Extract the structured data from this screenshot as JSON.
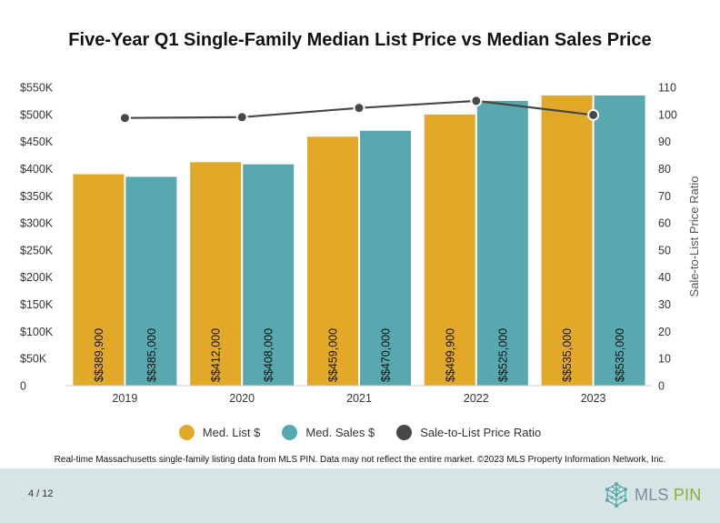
{
  "chart_data": {
    "type": "bar",
    "title": "Five-Year Q1 Single-Family Median List Price vs Median Sales Price",
    "categories": [
      "2019",
      "2020",
      "2021",
      "2022",
      "2023"
    ],
    "series": [
      {
        "name": "Med. List $",
        "type": "bar",
        "axis": "left",
        "color": "#E2A828",
        "values": [
          389900,
          412000,
          459000,
          499900,
          535000
        ],
        "labels": [
          "$$389,900",
          "$$412,000",
          "$$459,000",
          "$$499,900",
          "$$535,000"
        ]
      },
      {
        "name": "Med. Sales $",
        "type": "bar",
        "axis": "left",
        "color": "#58A9AF",
        "values": [
          385000,
          408000,
          470000,
          525000,
          535000
        ],
        "labels": [
          "$$385,000",
          "$$408,000",
          "$$470,000",
          "$$525,000",
          "$$535,000"
        ]
      },
      {
        "name": "Sale-to-List Price Ratio",
        "type": "line",
        "axis": "right",
        "color": "#484848",
        "values": [
          98.7,
          99.0,
          102.4,
          105.0,
          99.8
        ]
      }
    ],
    "y_left": {
      "ylim": [
        0,
        550000
      ],
      "ticks": [
        0,
        50000,
        100000,
        150000,
        200000,
        250000,
        300000,
        350000,
        400000,
        450000,
        500000,
        550000
      ],
      "tick_labels": [
        "0",
        "$50K",
        "$100K",
        "$150K",
        "$200K",
        "$250K",
        "$300K",
        "$350K",
        "$400K",
        "$450K",
        "$500K",
        "$550K"
      ]
    },
    "y_right": {
      "ylabel": "Sale-to-List Price Ratio",
      "ylim": [
        0,
        110
      ],
      "ticks": [
        0,
        10,
        20,
        30,
        40,
        50,
        60,
        70,
        80,
        90,
        100,
        110
      ],
      "tick_labels": [
        "0",
        "10",
        "20",
        "30",
        "40",
        "50",
        "60",
        "70",
        "80",
        "90",
        "100",
        "110"
      ]
    },
    "grid": false,
    "legend": "bottom"
  },
  "footnote": "Real-time Massachusetts single-family listing data from MLS PIN. Data may not reflect the entire market. ©2023 MLS Property Information Network, Inc.",
  "footer": {
    "page": "4 / 12",
    "logo_text_1": "MLS",
    "logo_text_2": "PIN",
    "logo_icon": "network-cube-icon"
  }
}
